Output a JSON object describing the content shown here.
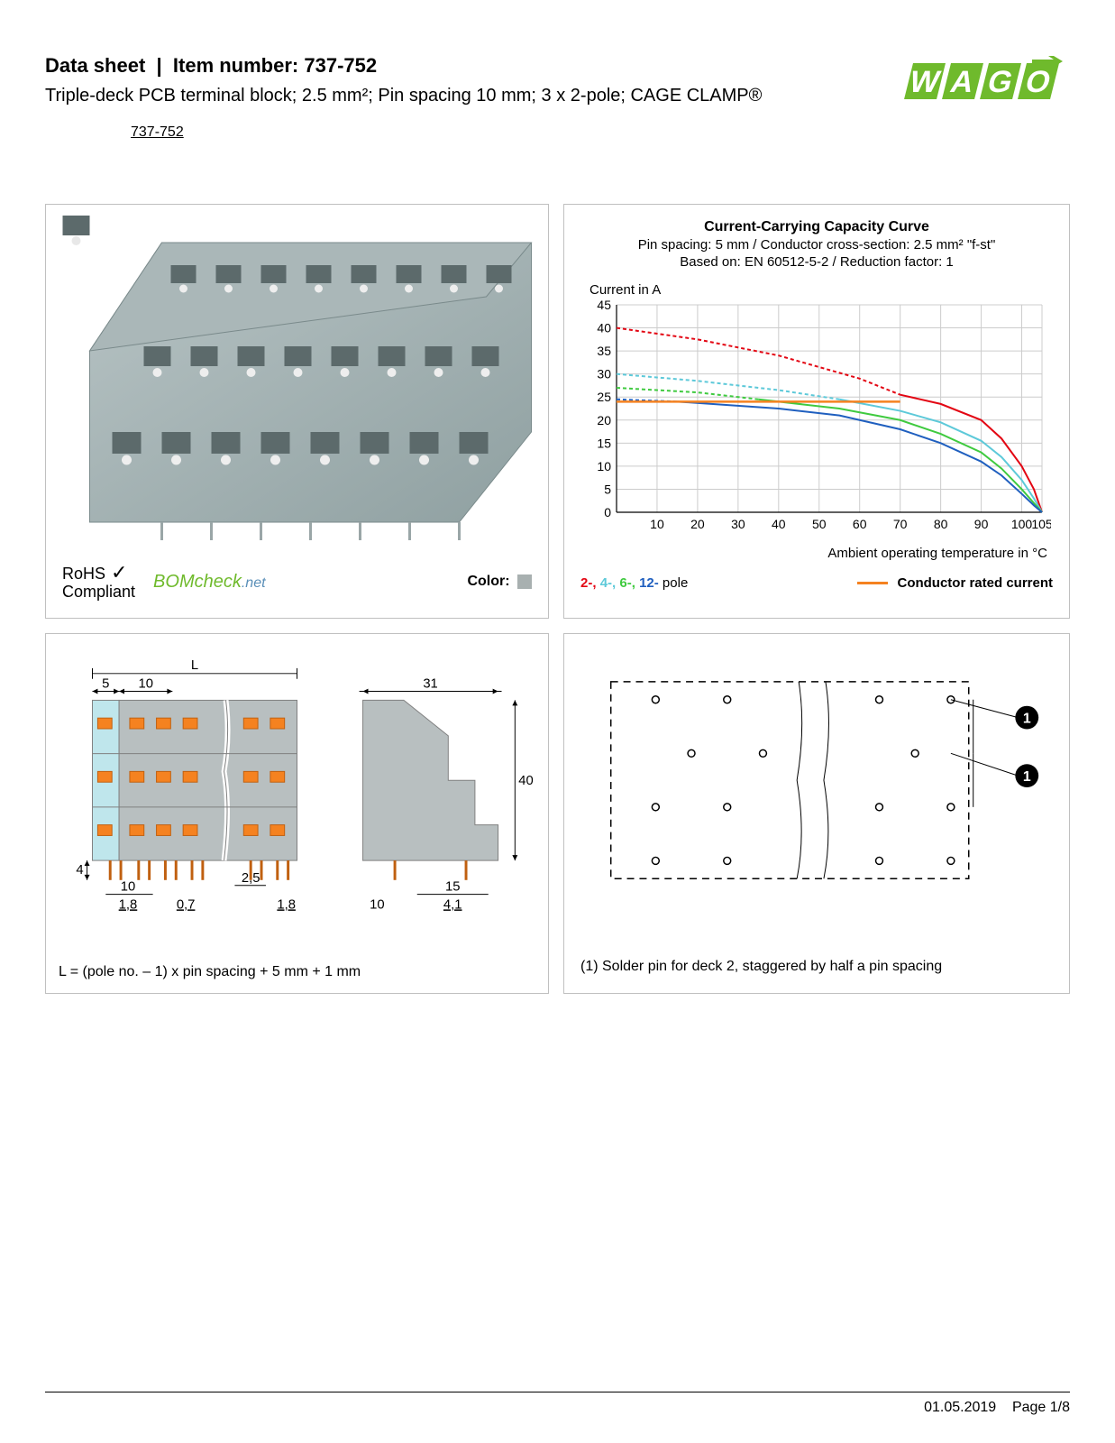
{
  "header": {
    "datasheet_label": "Data sheet",
    "item_label": "Item number:",
    "item_number": "737-752",
    "subtitle": "Triple-deck PCB terminal block; 2.5 mm²; Pin spacing 10 mm; 3 x 2-pole; CAGE CLAMP®",
    "part_link": "737-752",
    "logo_text": "WAGO",
    "logo_color": "#6fba2c"
  },
  "panel_image": {
    "rohs_line1": "RoHS",
    "rohs_line2": "Compliant",
    "bomcheck": "BOMcheck",
    "bomcheck_suffix": ".net",
    "color_label": "Color:",
    "swatch_color": "#a8b0b0",
    "block_color": "#a4b2b3"
  },
  "chart": {
    "title": "Current-Carrying Capacity Curve",
    "sub1": "Pin spacing: 5 mm / Conductor cross-section: 2.5 mm² \"f-st\"",
    "sub2": "Based on: EN 60512-5-2 / Reduction factor: 1",
    "y_label": "Current in A",
    "x_label": "Ambient operating temperature in °C",
    "x_ticks": [
      10,
      20,
      30,
      40,
      50,
      60,
      70,
      80,
      90,
      100,
      105
    ],
    "y_ticks": [
      0,
      5,
      10,
      15,
      20,
      25,
      30,
      35,
      40,
      45
    ],
    "xlim": [
      0,
      105
    ],
    "ylim": [
      0,
      45
    ],
    "grid_color": "#cccccc",
    "background": "#ffffff",
    "series": [
      {
        "name": "2-pole",
        "color": "#e30613",
        "dash": "4 3",
        "points": [
          [
            0,
            40
          ],
          [
            20,
            37.5
          ],
          [
            40,
            34
          ],
          [
            60,
            29
          ],
          [
            70,
            25.5
          ]
        ]
      },
      {
        "name": "2-pole-solid",
        "color": "#e30613",
        "dash": "none",
        "points": [
          [
            70,
            25.5
          ],
          [
            80,
            23.5
          ],
          [
            90,
            20
          ],
          [
            95,
            16
          ],
          [
            100,
            10
          ],
          [
            103,
            5
          ],
          [
            105,
            0
          ]
        ]
      },
      {
        "name": "4-pole",
        "color": "#5dc9d9",
        "dash": "4 3",
        "points": [
          [
            0,
            30
          ],
          [
            20,
            28.5
          ],
          [
            40,
            26.5
          ],
          [
            55,
            24.5
          ]
        ]
      },
      {
        "name": "4-pole-solid",
        "color": "#5dc9d9",
        "dash": "none",
        "points": [
          [
            55,
            24.5
          ],
          [
            70,
            22
          ],
          [
            80,
            19.5
          ],
          [
            90,
            15.5
          ],
          [
            95,
            12
          ],
          [
            100,
            7
          ],
          [
            103,
            3
          ],
          [
            105,
            0
          ]
        ]
      },
      {
        "name": "6-pole",
        "color": "#3fca3f",
        "dash": "4 3",
        "points": [
          [
            0,
            27
          ],
          [
            20,
            26
          ],
          [
            35,
            24.5
          ]
        ]
      },
      {
        "name": "6-pole-solid",
        "color": "#3fca3f",
        "dash": "none",
        "points": [
          [
            35,
            24.5
          ],
          [
            55,
            22.5
          ],
          [
            70,
            20
          ],
          [
            80,
            17
          ],
          [
            90,
            13
          ],
          [
            95,
            9.5
          ],
          [
            100,
            5
          ],
          [
            103,
            2
          ],
          [
            105,
            0
          ]
        ]
      },
      {
        "name": "12-pole",
        "color": "#1f5fbf",
        "dash": "4 3",
        "points": [
          [
            0,
            24.5
          ],
          [
            15,
            24
          ]
        ]
      },
      {
        "name": "12-pole-solid",
        "color": "#1f5fbf",
        "dash": "none",
        "points": [
          [
            15,
            24
          ],
          [
            40,
            22.5
          ],
          [
            55,
            21
          ],
          [
            70,
            18
          ],
          [
            80,
            15
          ],
          [
            90,
            11
          ],
          [
            95,
            8
          ],
          [
            100,
            4
          ],
          [
            103,
            1.5
          ],
          [
            105,
            0
          ]
        ]
      },
      {
        "name": "rated",
        "color": "#f58220",
        "dash": "none",
        "width": 2.5,
        "points": [
          [
            0,
            24
          ],
          [
            70,
            24
          ]
        ]
      }
    ],
    "legend_items": [
      {
        "label": "2-",
        "color": "#e30613"
      },
      {
        "label": "4-",
        "color": "#5dc9d9"
      },
      {
        "label": "6-",
        "color": "#3fca3f"
      },
      {
        "label": "12-",
        "color": "#1f5fbf"
      }
    ],
    "legend_suffix": " pole",
    "legend_conductor": "Conductor rated current",
    "legend_conductor_color": "#f58220"
  },
  "dimensions": {
    "formula": "L = (pole no. – 1) x pin spacing + 5 mm + 1 mm",
    "values": {
      "L": "L",
      "d5": "5",
      "d10": "10",
      "d31": "31",
      "d40": "40",
      "d4": "4",
      "d10b": "10",
      "d1_8": "1,8",
      "d0_7": "0,7",
      "d2_5": "2,5",
      "d1_8b": "1,8",
      "d10c": "10",
      "d15": "15",
      "d4_1": "4,1"
    },
    "colors": {
      "body": "#b8bfc0",
      "body_stroke": "#808080",
      "highlight": "#bfe6ec",
      "orange": "#f58220",
      "dim": "#000000"
    }
  },
  "solder": {
    "note": "(1) Solder pin for deck 2, staggered by half a pin spacing",
    "label1": "1"
  },
  "footer": {
    "date": "01.05.2019",
    "page": "Page 1/8"
  }
}
